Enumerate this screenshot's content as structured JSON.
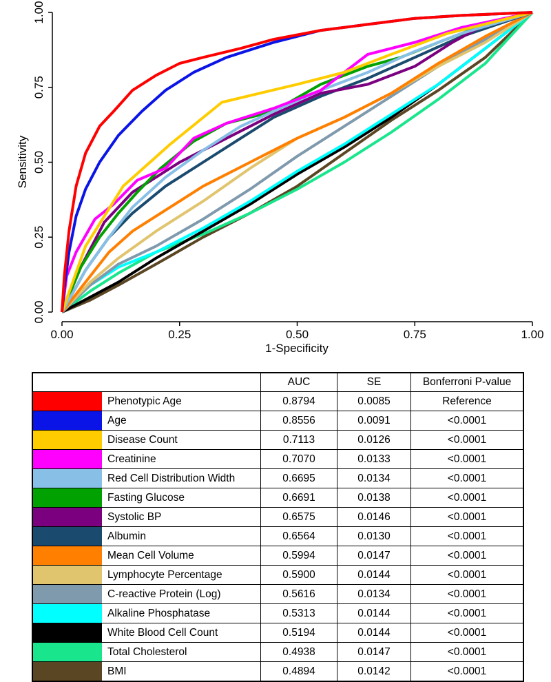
{
  "chart_data": {
    "type": "line",
    "title": "",
    "xlabel": "1-Specificity",
    "ylabel": "Sensitivity",
    "xlim": [
      0,
      1
    ],
    "ylim": [
      0,
      1
    ],
    "x_ticks": [
      "0.00",
      "0.25",
      "0.50",
      "0.75",
      "1.00"
    ],
    "y_ticks": [
      "0.00",
      "0.25",
      "0.50",
      "0.75",
      "1.00"
    ],
    "grid": false,
    "series": [
      {
        "name": "Phenotypic Age",
        "color": "#ff0000",
        "points": [
          [
            0,
            0
          ],
          [
            0.005,
            0.12
          ],
          [
            0.015,
            0.27
          ],
          [
            0.03,
            0.42
          ],
          [
            0.05,
            0.53
          ],
          [
            0.08,
            0.62
          ],
          [
            0.11,
            0.67
          ],
          [
            0.15,
            0.74
          ],
          [
            0.2,
            0.79
          ],
          [
            0.25,
            0.83
          ],
          [
            0.3,
            0.85
          ],
          [
            0.38,
            0.88
          ],
          [
            0.45,
            0.91
          ],
          [
            0.55,
            0.94
          ],
          [
            0.65,
            0.96
          ],
          [
            0.75,
            0.98
          ],
          [
            0.85,
            0.99
          ],
          [
            1,
            1
          ]
        ]
      },
      {
        "name": "Age",
        "color": "#0a14e6",
        "points": [
          [
            0,
            0
          ],
          [
            0.005,
            0.08
          ],
          [
            0.015,
            0.2
          ],
          [
            0.03,
            0.32
          ],
          [
            0.05,
            0.41
          ],
          [
            0.08,
            0.5
          ],
          [
            0.12,
            0.59
          ],
          [
            0.17,
            0.67
          ],
          [
            0.22,
            0.74
          ],
          [
            0.28,
            0.8
          ],
          [
            0.35,
            0.85
          ],
          [
            0.45,
            0.9
          ],
          [
            0.55,
            0.94
          ],
          [
            0.65,
            0.96
          ],
          [
            0.75,
            0.98
          ],
          [
            0.85,
            0.99
          ],
          [
            1,
            1
          ]
        ]
      },
      {
        "name": "Disease Count",
        "color": "#ffcc00",
        "points": [
          [
            0,
            0
          ],
          [
            0.05,
            0.22
          ],
          [
            0.13,
            0.42
          ],
          [
            0.23,
            0.56
          ],
          [
            0.34,
            0.7
          ],
          [
            0.5,
            0.76
          ],
          [
            0.6,
            0.8
          ],
          [
            0.7,
            0.86
          ],
          [
            0.82,
            0.93
          ],
          [
            1,
            1
          ]
        ]
      },
      {
        "name": "Creatinine",
        "color": "#ff00ff",
        "points": [
          [
            0,
            0
          ],
          [
            0.01,
            0.12
          ],
          [
            0.03,
            0.2
          ],
          [
            0.07,
            0.31
          ],
          [
            0.11,
            0.36
          ],
          [
            0.16,
            0.44
          ],
          [
            0.22,
            0.48
          ],
          [
            0.28,
            0.58
          ],
          [
            0.35,
            0.63
          ],
          [
            0.45,
            0.68
          ],
          [
            0.55,
            0.74
          ],
          [
            0.65,
            0.86
          ],
          [
            0.75,
            0.9
          ],
          [
            0.85,
            0.95
          ],
          [
            1,
            1
          ]
        ]
      },
      {
        "name": "Red Cell Distribution Width",
        "color": "#87bfe6",
        "points": [
          [
            0,
            0
          ],
          [
            0.05,
            0.14
          ],
          [
            0.1,
            0.25
          ],
          [
            0.15,
            0.35
          ],
          [
            0.22,
            0.45
          ],
          [
            0.3,
            0.54
          ],
          [
            0.38,
            0.62
          ],
          [
            0.45,
            0.67
          ],
          [
            0.55,
            0.74
          ],
          [
            0.65,
            0.8
          ],
          [
            0.75,
            0.87
          ],
          [
            0.85,
            0.93
          ],
          [
            1,
            1
          ]
        ]
      },
      {
        "name": "Fasting Glucose",
        "color": "#00a100",
        "points": [
          [
            0,
            0
          ],
          [
            0.04,
            0.15
          ],
          [
            0.08,
            0.25
          ],
          [
            0.12,
            0.33
          ],
          [
            0.16,
            0.4
          ],
          [
            0.21,
            0.48
          ],
          [
            0.28,
            0.57
          ],
          [
            0.35,
            0.63
          ],
          [
            0.45,
            0.67
          ],
          [
            0.55,
            0.76
          ],
          [
            0.65,
            0.82
          ],
          [
            0.72,
            0.85
          ],
          [
            0.8,
            0.9
          ],
          [
            0.9,
            0.96
          ],
          [
            1,
            1
          ]
        ]
      },
      {
        "name": "Systolic BP",
        "color": "#7b0080",
        "points": [
          [
            0,
            0
          ],
          [
            0.04,
            0.15
          ],
          [
            0.09,
            0.3
          ],
          [
            0.15,
            0.4
          ],
          [
            0.25,
            0.5
          ],
          [
            0.35,
            0.58
          ],
          [
            0.45,
            0.66
          ],
          [
            0.55,
            0.73
          ],
          [
            0.65,
            0.76
          ],
          [
            0.75,
            0.82
          ],
          [
            0.83,
            0.9
          ],
          [
            0.9,
            0.96
          ],
          [
            1,
            1
          ]
        ]
      },
      {
        "name": "Albumin",
        "color": "#1a4a6e",
        "points": [
          [
            0,
            0
          ],
          [
            0.05,
            0.14
          ],
          [
            0.1,
            0.25
          ],
          [
            0.15,
            0.33
          ],
          [
            0.22,
            0.42
          ],
          [
            0.3,
            0.5
          ],
          [
            0.38,
            0.58
          ],
          [
            0.45,
            0.65
          ],
          [
            0.55,
            0.72
          ],
          [
            0.65,
            0.78
          ],
          [
            0.75,
            0.85
          ],
          [
            0.85,
            0.92
          ],
          [
            1,
            1
          ]
        ]
      },
      {
        "name": "Mean Cell Volume",
        "color": "#ff7f00",
        "points": [
          [
            0,
            0
          ],
          [
            0.05,
            0.1
          ],
          [
            0.1,
            0.2
          ],
          [
            0.15,
            0.27
          ],
          [
            0.22,
            0.34
          ],
          [
            0.3,
            0.42
          ],
          [
            0.4,
            0.5
          ],
          [
            0.5,
            0.58
          ],
          [
            0.6,
            0.65
          ],
          [
            0.7,
            0.73
          ],
          [
            0.8,
            0.83
          ],
          [
            0.9,
            0.92
          ],
          [
            1,
            1
          ]
        ]
      },
      {
        "name": "Lymphocyte Percentage",
        "color": "#e0c46e",
        "points": [
          [
            0,
            0
          ],
          [
            0.06,
            0.1
          ],
          [
            0.12,
            0.18
          ],
          [
            0.2,
            0.27
          ],
          [
            0.3,
            0.37
          ],
          [
            0.4,
            0.48
          ],
          [
            0.5,
            0.58
          ],
          [
            0.6,
            0.65
          ],
          [
            0.7,
            0.73
          ],
          [
            0.8,
            0.82
          ],
          [
            0.9,
            0.9
          ],
          [
            1,
            1
          ]
        ]
      },
      {
        "name": "C-reactive Protein (Log)",
        "color": "#7f99ad",
        "points": [
          [
            0,
            0
          ],
          [
            0.06,
            0.09
          ],
          [
            0.12,
            0.16
          ],
          [
            0.2,
            0.22
          ],
          [
            0.3,
            0.31
          ],
          [
            0.4,
            0.41
          ],
          [
            0.5,
            0.52
          ],
          [
            0.6,
            0.62
          ],
          [
            0.7,
            0.72
          ],
          [
            0.8,
            0.82
          ],
          [
            0.9,
            0.91
          ],
          [
            1,
            1
          ]
        ]
      },
      {
        "name": "Alkaline Phosphatase",
        "color": "#00ffff",
        "points": [
          [
            0,
            0
          ],
          [
            0.06,
            0.09
          ],
          [
            0.12,
            0.15
          ],
          [
            0.2,
            0.2
          ],
          [
            0.3,
            0.28
          ],
          [
            0.4,
            0.37
          ],
          [
            0.5,
            0.47
          ],
          [
            0.6,
            0.56
          ],
          [
            0.7,
            0.66
          ],
          [
            0.8,
            0.76
          ],
          [
            0.9,
            0.88
          ],
          [
            1,
            1
          ]
        ]
      },
      {
        "name": "White Blood Cell Count",
        "color": "#000000",
        "points": [
          [
            0,
            0
          ],
          [
            0.06,
            0.05
          ],
          [
            0.12,
            0.1
          ],
          [
            0.2,
            0.18
          ],
          [
            0.3,
            0.27
          ],
          [
            0.4,
            0.36
          ],
          [
            0.5,
            0.46
          ],
          [
            0.6,
            0.55
          ],
          [
            0.7,
            0.65
          ],
          [
            0.8,
            0.76
          ],
          [
            0.9,
            0.88
          ],
          [
            1,
            1
          ]
        ]
      },
      {
        "name": "Total Cholesterol",
        "color": "#19e68c",
        "points": [
          [
            0,
            0
          ],
          [
            0.06,
            0.07
          ],
          [
            0.12,
            0.13
          ],
          [
            0.2,
            0.2
          ],
          [
            0.3,
            0.26
          ],
          [
            0.4,
            0.33
          ],
          [
            0.5,
            0.41
          ],
          [
            0.6,
            0.5
          ],
          [
            0.7,
            0.6
          ],
          [
            0.8,
            0.71
          ],
          [
            0.9,
            0.83
          ],
          [
            1,
            1
          ]
        ]
      },
      {
        "name": "BMI",
        "color": "#5a4622",
        "points": [
          [
            0,
            0
          ],
          [
            0.06,
            0.04
          ],
          [
            0.12,
            0.09
          ],
          [
            0.2,
            0.16
          ],
          [
            0.3,
            0.25
          ],
          [
            0.4,
            0.33
          ],
          [
            0.5,
            0.42
          ],
          [
            0.6,
            0.53
          ],
          [
            0.7,
            0.64
          ],
          [
            0.8,
            0.74
          ],
          [
            0.9,
            0.85
          ],
          [
            1,
            1
          ]
        ]
      }
    ]
  },
  "legend_table": {
    "headers": [
      "",
      "AUC",
      "SE",
      "Bonferroni P-value"
    ],
    "rows": [
      {
        "name": "Phenotypic Age",
        "color": "#ff0000",
        "auc": "0.8794",
        "se": "0.0085",
        "p": "Reference"
      },
      {
        "name": "Age",
        "color": "#0a14e6",
        "auc": "0.8556",
        "se": "0.0091",
        "p": "<0.0001"
      },
      {
        "name": "Disease Count",
        "color": "#ffcc00",
        "auc": "0.7113",
        "se": "0.0126",
        "p": "<0.0001"
      },
      {
        "name": "Creatinine",
        "color": "#ff00ff",
        "auc": "0.7070",
        "se": "0.0133",
        "p": "<0.0001"
      },
      {
        "name": "Red Cell Distribution Width",
        "color": "#87bfe6",
        "auc": "0.6695",
        "se": "0.0134",
        "p": "<0.0001"
      },
      {
        "name": "Fasting Glucose",
        "color": "#00a100",
        "auc": "0.6691",
        "se": "0.0138",
        "p": "<0.0001"
      },
      {
        "name": "Systolic BP",
        "color": "#7b0080",
        "auc": "0.6575",
        "se": "0.0146",
        "p": "<0.0001"
      },
      {
        "name": "Albumin",
        "color": "#1a4a6e",
        "auc": "0.6564",
        "se": "0.0130",
        "p": "<0.0001"
      },
      {
        "name": "Mean Cell Volume",
        "color": "#ff7f00",
        "auc": "0.5994",
        "se": "0.0147",
        "p": "<0.0001"
      },
      {
        "name": "Lymphocyte Percentage",
        "color": "#e0c46e",
        "auc": "0.5900",
        "se": "0.0144",
        "p": "<0.0001"
      },
      {
        "name": "C-reactive Protein (Log)",
        "color": "#7f99ad",
        "auc": "0.5616",
        "se": "0.0134",
        "p": "<0.0001"
      },
      {
        "name": "Alkaline Phosphatase",
        "color": "#00ffff",
        "auc": "0.5313",
        "se": "0.0144",
        "p": "<0.0001"
      },
      {
        "name": "White Blood Cell Count",
        "color": "#000000",
        "auc": "0.5194",
        "se": "0.0144",
        "p": "<0.0001"
      },
      {
        "name": "Total Cholesterol",
        "color": "#19e68c",
        "auc": "0.4938",
        "se": "0.0147",
        "p": "<0.0001"
      },
      {
        "name": "BMI",
        "color": "#5a4622",
        "auc": "0.4894",
        "se": "0.0142",
        "p": "<0.0001"
      }
    ]
  }
}
